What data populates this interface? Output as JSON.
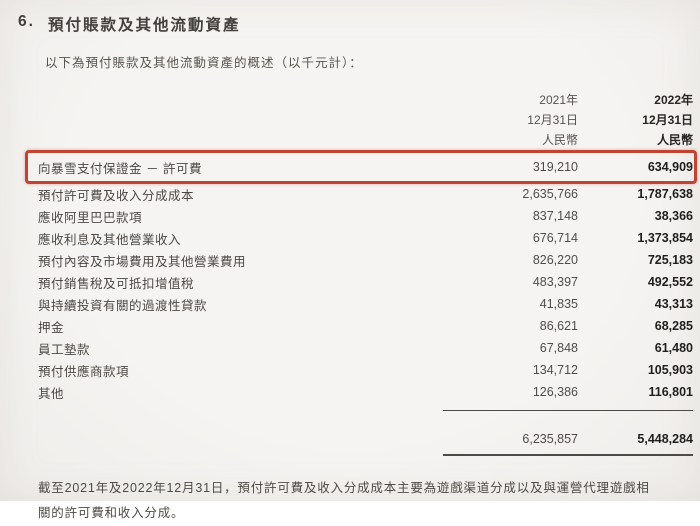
{
  "page": {
    "section_number": "6.",
    "title": "預付賬款及其他流動資產",
    "subtitle": "以下為預付賬款及其他流動資產的概述（以千元計）："
  },
  "table": {
    "header_2021": {
      "year": "2021年",
      "date": "12月31日",
      "currency": "人民幣"
    },
    "header_2022": {
      "year": "2022年",
      "date": "12月31日",
      "currency": "人民幣"
    },
    "rows": [
      {
        "label": "向暴雪支付保證金 － 許可費",
        "v2021": "319,210",
        "v2022": "634,909",
        "highlighted": true
      },
      {
        "label": "預付許可費及收入分成成本",
        "v2021": "2,635,766",
        "v2022": "1,787,638"
      },
      {
        "label": "應收阿里巴巴款項",
        "v2021": "837,148",
        "v2022": "38,366"
      },
      {
        "label": "應收利息及其他營業收入",
        "v2021": "676,714",
        "v2022": "1,373,854"
      },
      {
        "label": "預付內容及市場費用及其他營業費用",
        "v2021": "826,220",
        "v2022": "725,183"
      },
      {
        "label": "預付銷售稅及可抵扣增值稅",
        "v2021": "483,397",
        "v2022": "492,552"
      },
      {
        "label": "與持續投資有關的過渡性貸款",
        "v2021": "41,835",
        "v2022": "43,313"
      },
      {
        "label": "押金",
        "v2021": "86,621",
        "v2022": "68,285"
      },
      {
        "label": "員工墊款",
        "v2021": "67,848",
        "v2022": "61,480"
      },
      {
        "label": "預付供應商款項",
        "v2021": "134,712",
        "v2022": "105,903"
      },
      {
        "label": "其他",
        "v2021": "126,386",
        "v2022": "116,801"
      }
    ],
    "total": {
      "v2021": "6,235,857",
      "v2022": "5,448,284"
    }
  },
  "footnote": "截至2021年及2022年12月31日，預付許可費及收入分成成本主要為遊戲渠道分成以及與運營代理遊戲相關的許可費和收入分成。",
  "colors": {
    "highlight_border": "#c04433",
    "background": "#f4f2f0",
    "text": "#4c4845",
    "bold_text": "#211f1d"
  }
}
